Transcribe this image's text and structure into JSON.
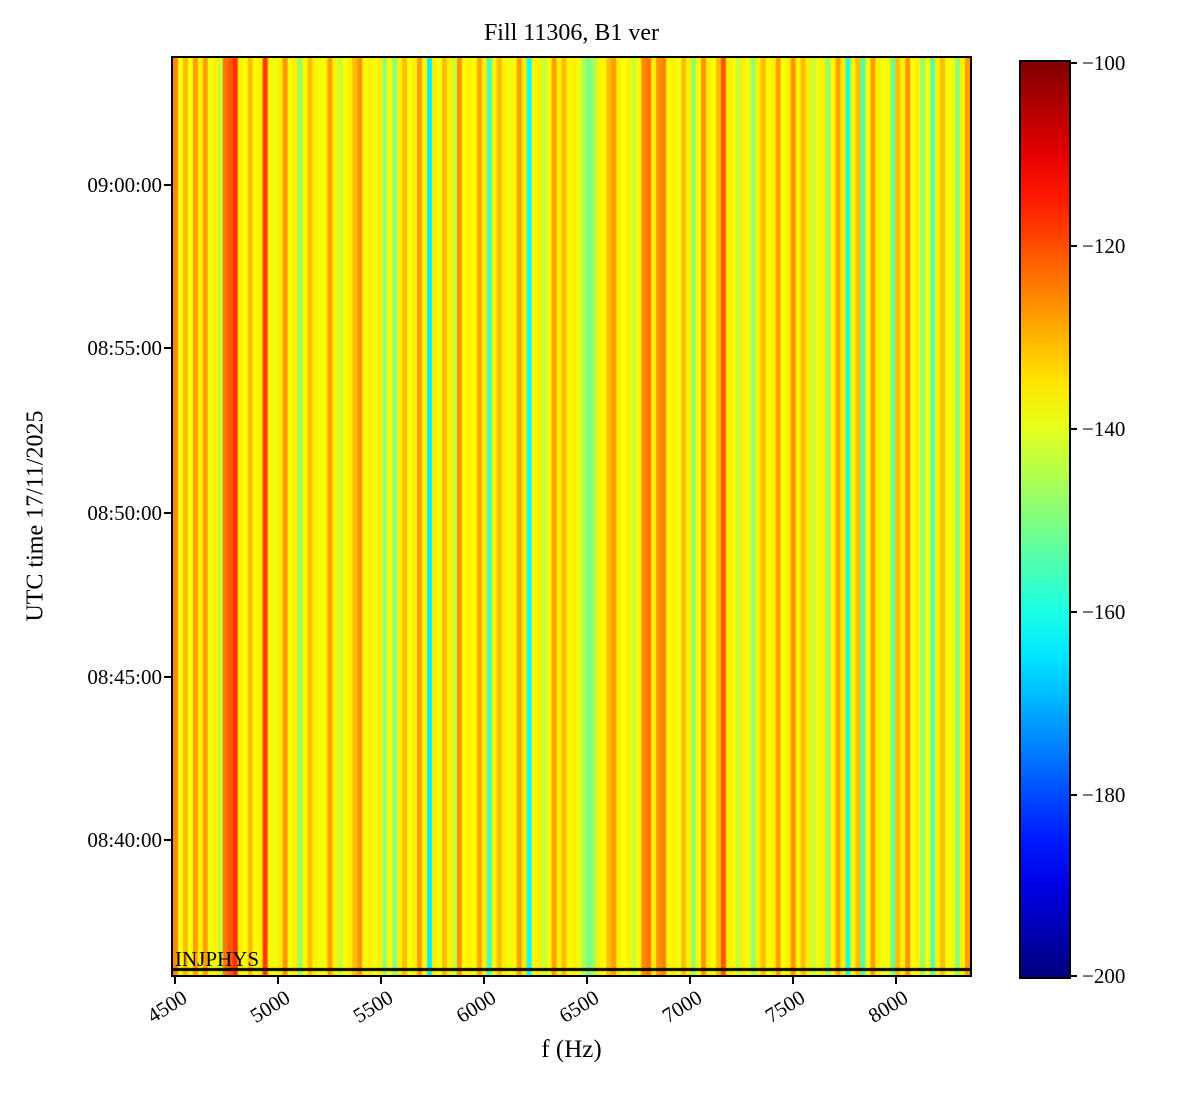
{
  "figure": {
    "title": "Fill 11306, B1 ver",
    "x_axis": {
      "label": "f (Hz)",
      "tick_labels": [
        "4500",
        "5000",
        "5500",
        "6000",
        "6500",
        "7000",
        "7500",
        "8000"
      ]
    },
    "y_axis": {
      "label": "UTC time 17/11/2025",
      "tick_labels": [
        "09:00:00",
        "08:55:00",
        "08:50:00",
        "08:45:00",
        "08:40:00"
      ]
    },
    "annotation_text": "INJPHYS",
    "colorbar": {
      "tick_labels": [
        "−100",
        "−120",
        "−140",
        "−160",
        "−180",
        "−200"
      ]
    }
  },
  "chart_data": {
    "type": "heatmap",
    "title": "Fill 11306, B1 ver",
    "xlabel": "f (Hz)",
    "ylabel": "UTC time 17/11/2025",
    "x_range_hz": [
      4490,
      8360
    ],
    "x_tick_values_hz": [
      4500,
      5000,
      5500,
      6000,
      6500,
      7000,
      7500,
      8000
    ],
    "y_tick_times_utc": [
      "09:00:00",
      "08:55:00",
      "08:50:00",
      "08:45:00",
      "08:40:00"
    ],
    "date": "17/11/2025",
    "colormap": "jet",
    "color_scale_db": {
      "min": -200,
      "max": -100,
      "tick_values": [
        -100,
        -120,
        -140,
        -160,
        -180,
        -200
      ]
    },
    "beam_mode_annotation": {
      "text": "INJPHYS",
      "location": "bottom-left"
    },
    "separator_line": {
      "orientation": "horizontal",
      "fraction_from_top": 0.9945,
      "color": "#000000"
    },
    "pattern": "vertical frequency stripes, constant over time",
    "spectrum_stripes_db": [
      -126,
      -137,
      -131,
      -138,
      -128,
      -136,
      -128,
      -139,
      -136,
      -143,
      -124,
      -121,
      -117,
      -136,
      -138,
      -131,
      -137,
      -136,
      -118,
      -137,
      -139,
      -136,
      -127,
      -138,
      -136,
      -148,
      -137,
      -131,
      -136,
      -139,
      -137,
      -128,
      -136,
      -143,
      -138,
      -136,
      -131,
      -127,
      -137,
      -136,
      -139,
      -136,
      -148,
      -137,
      -149,
      -136,
      -131,
      -138,
      -136,
      -128,
      -137,
      -164,
      -136,
      -139,
      -131,
      -136,
      -143,
      -127,
      -137,
      -136,
      -138,
      -129,
      -136,
      -156,
      -137,
      -131,
      -136,
      -139,
      -137,
      -128,
      -136,
      -162,
      -137,
      -136,
      -143,
      -138,
      -128,
      -136,
      -131,
      -137,
      -136,
      -139,
      -146,
      -151,
      -147,
      -136,
      -137,
      -131,
      -128,
      -136,
      -138,
      -136,
      -143,
      -137,
      -126,
      -124,
      -136,
      -127,
      -125,
      -137,
      -136,
      -139,
      -131,
      -136,
      -148,
      -137,
      -127,
      -136,
      -138,
      -131,
      -121,
      -136,
      -137,
      -143,
      -136,
      -139,
      -148,
      -136,
      -131,
      -137,
      -136,
      -128,
      -138,
      -136,
      -127,
      -137,
      -131,
      -136,
      -143,
      -139,
      -136,
      -148,
      -137,
      -128,
      -136,
      -160,
      -137,
      -131,
      -155,
      -138,
      -128,
      -136,
      -139,
      -137,
      -152,
      -131,
      -136,
      -127,
      -137,
      -136,
      -148,
      -138,
      -154,
      -136,
      -131,
      -137,
      -139,
      -149,
      -136,
      -128
    ]
  }
}
